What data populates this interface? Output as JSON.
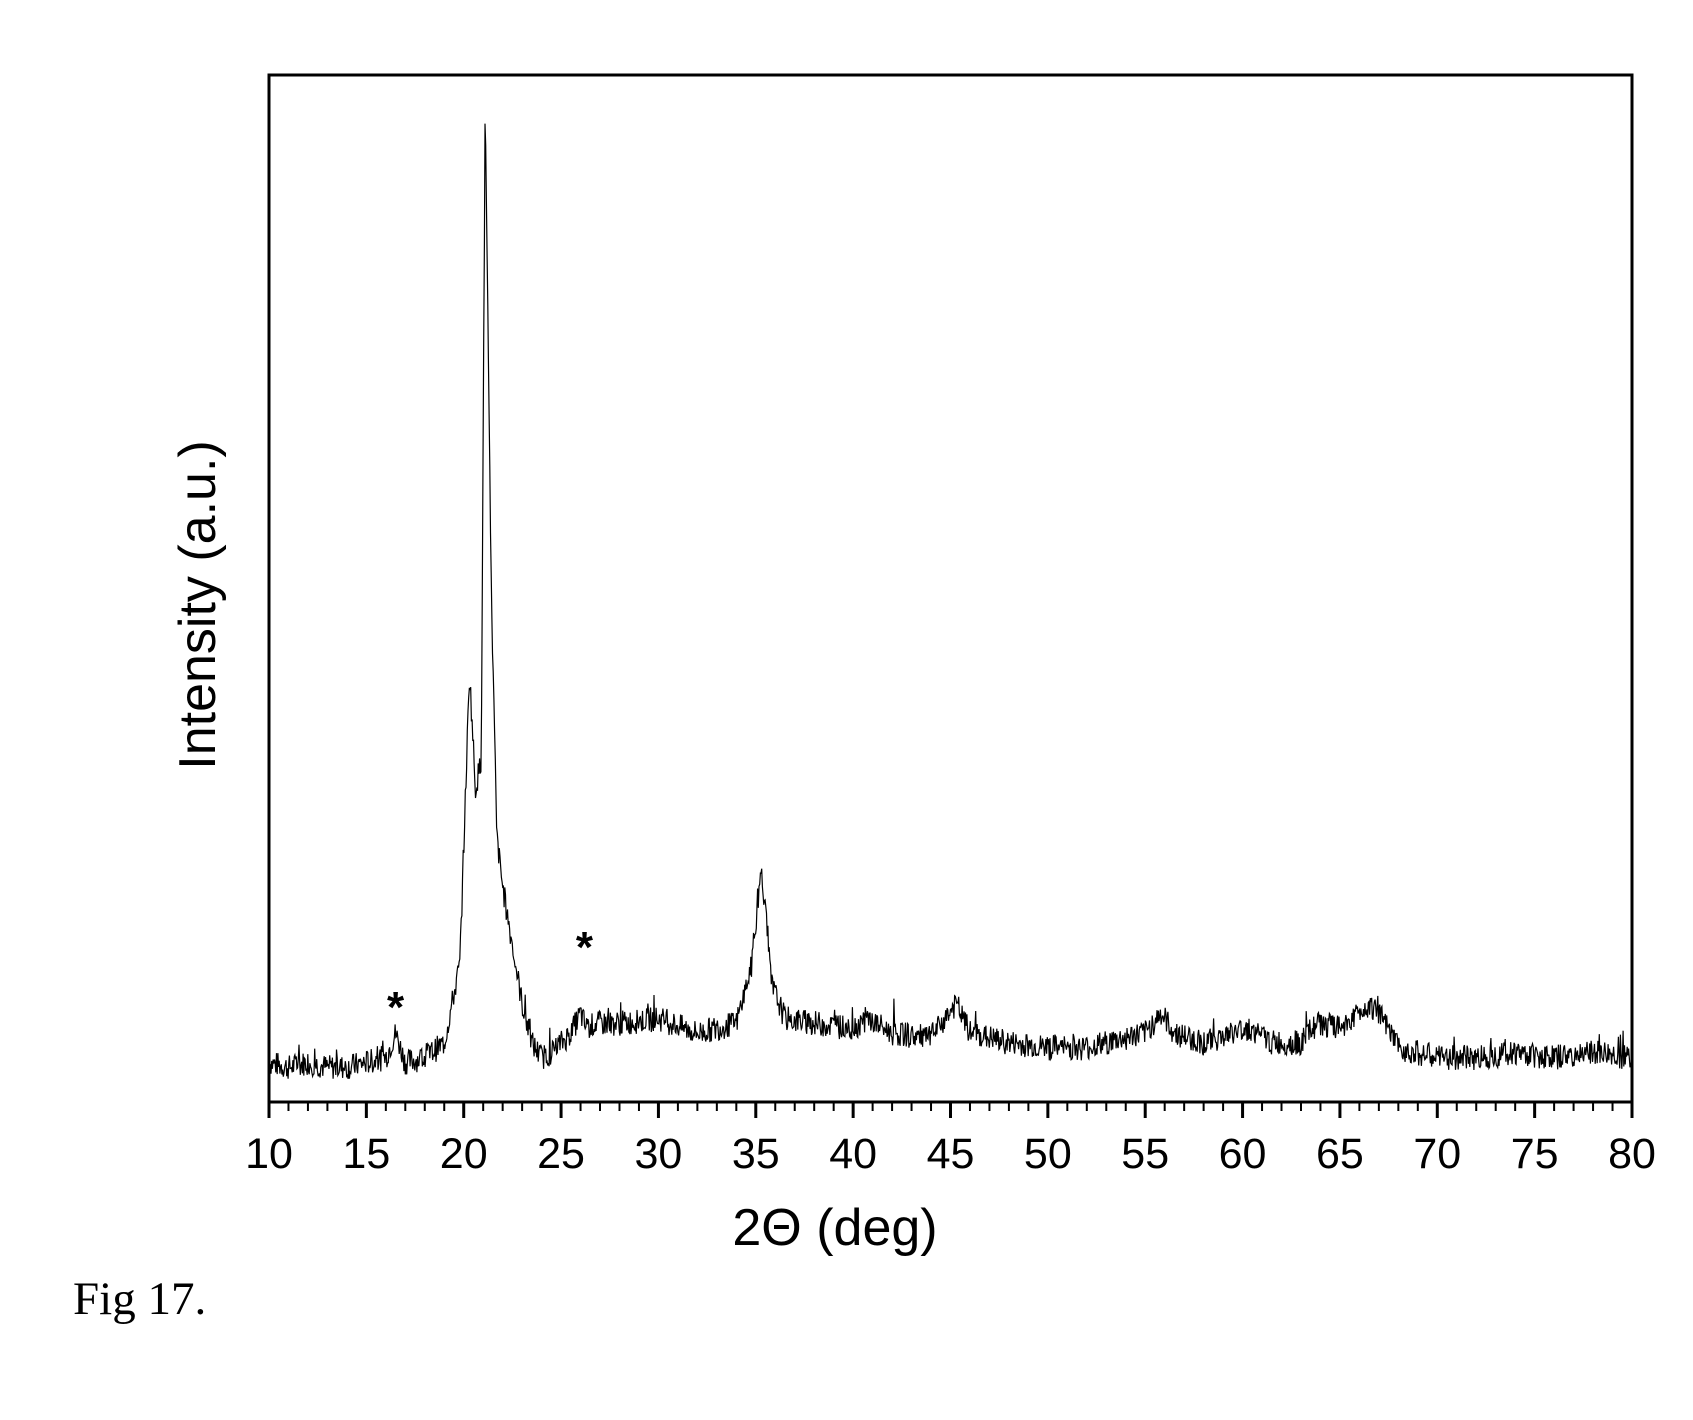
{
  "caption": "Fig 17.",
  "chart_data": {
    "type": "line",
    "title": "",
    "xlabel": "2Θ (deg)",
    "ylabel": "Intensity (a.u.)",
    "xlim": [
      10,
      80
    ],
    "ylim": [
      0,
      100
    ],
    "x_ticks": [
      "10",
      "15",
      "20",
      "25",
      "30",
      "35",
      "40",
      "45",
      "50",
      "55",
      "60",
      "65",
      "70",
      "75",
      "80"
    ],
    "y_ticks_shown": false,
    "grid": false,
    "legend": "none",
    "line_color": "#000000",
    "annotations": [
      {
        "text": "*",
        "x": 16.5
      },
      {
        "text": "*",
        "x": 26.2
      }
    ],
    "series": [
      {
        "x": [
          10,
          11,
          12,
          13,
          14,
          15,
          16,
          16.5,
          17,
          18,
          19,
          19.8,
          20.3,
          20.6,
          20.9,
          21.1,
          21.4,
          21.7,
          22.0,
          22.5,
          23,
          23.5,
          24,
          24.5,
          25,
          25.5,
          26,
          26.3,
          26.8,
          28,
          30,
          32,
          33,
          34,
          34.8,
          35.3,
          35.8,
          36.5,
          38,
          40,
          40.7,
          42,
          44,
          45.3,
          46,
          48,
          50,
          52,
          54,
          55,
          55.8,
          56.5,
          58,
          60.3,
          61.5,
          63,
          63.8,
          65,
          66.5,
          67,
          68,
          70,
          72,
          74,
          76,
          78,
          80
        ],
        "y": [
          2,
          1.5,
          2,
          1.5,
          1.5,
          2,
          2.5,
          5,
          2,
          2.5,
          4,
          12,
          42,
          30,
          33,
          100,
          52,
          25,
          20,
          14,
          8,
          4,
          2.5,
          3,
          4,
          5,
          7,
          5.5,
          6,
          6,
          6.5,
          5,
          5.5,
          6,
          12,
          22,
          10,
          6.5,
          6,
          5.5,
          6.5,
          5,
          4.5,
          8,
          5,
          4,
          3.5,
          3.5,
          4.5,
          5,
          7,
          5,
          4,
          5.5,
          4,
          4,
          6,
          5.5,
          8,
          7,
          3.5,
          2.5,
          2.5,
          3,
          2.5,
          3,
          2.5
        ]
      }
    ]
  }
}
